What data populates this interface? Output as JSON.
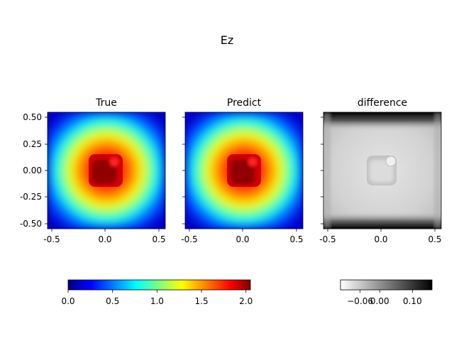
{
  "figure": {
    "suptitle": "Ez"
  },
  "chart_data": [
    {
      "type": "heatmap",
      "title": "True",
      "xlim": [
        -0.55,
        0.55
      ],
      "ylim": [
        -0.55,
        0.55
      ],
      "xticks": [
        "-0.5",
        "0.0",
        "0.5"
      ],
      "yticks": [
        "0.50",
        "0.25",
        "0.00",
        "-0.25",
        "-0.50"
      ],
      "colormap": "jet",
      "field": "Ez radial field, peak about 2.05 at a rounded square core (about -0.15 to 0.15), decaying toward 0 at the edges"
    },
    {
      "type": "heatmap",
      "title": "Predict",
      "xlim": [
        -0.55,
        0.55
      ],
      "ylim": [
        -0.55,
        0.55
      ],
      "xticks": [
        "-0.5",
        "0.0",
        "0.5"
      ],
      "colormap": "jet",
      "field": "same as True"
    },
    {
      "type": "heatmap",
      "title": "difference",
      "xlim": [
        -0.55,
        0.55
      ],
      "ylim": [
        -0.55,
        0.55
      ],
      "xticks": [
        "-0.5",
        "0.0",
        "0.5"
      ],
      "colormap": "gray_r",
      "field": "near-zero light gray everywhere; dark bands at top and bottom edges; faint outline around the core"
    }
  ],
  "colorbars": {
    "main": {
      "colormap": "jet",
      "range": [
        0.0,
        2.05
      ],
      "ticks": [
        "0.0",
        "0.5",
        "1.0",
        "1.5",
        "2.0"
      ],
      "tick_values": [
        0.0,
        0.5,
        1.0,
        1.5,
        2.0
      ]
    },
    "difference": {
      "colormap": "gray_r",
      "range": [
        -0.12,
        0.16
      ],
      "ticks": [
        "−0.06",
        "0.00",
        "0.10"
      ],
      "tick_values": [
        -0.06,
        0.0,
        0.1
      ]
    }
  },
  "colors": {
    "jet_dark_blue": "#00007f",
    "jet_red": "#ff0000",
    "jet_dark_red": "#800000"
  }
}
